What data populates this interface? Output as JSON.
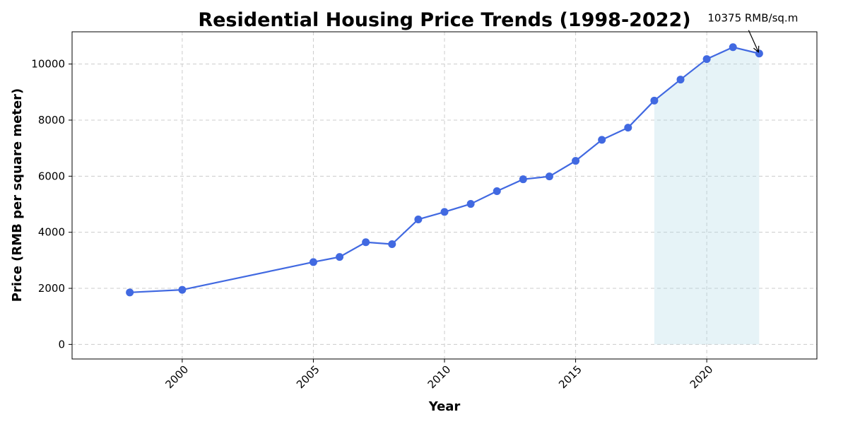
{
  "chart_data": {
    "type": "line",
    "title": "Residential Housing Price Trends (1998-2022)",
    "xlabel": "Year",
    "ylabel": "Price (RMB per square meter)",
    "xlim": [
      1995.8,
      2024.2
    ],
    "ylim": [
      -520,
      11150
    ],
    "x_ticks": [
      2000,
      2005,
      2010,
      2015,
      2020
    ],
    "y_ticks": [
      0,
      2000,
      4000,
      6000,
      8000,
      10000
    ],
    "grid": true,
    "series": [
      {
        "color": "#4169e1",
        "x": [
          1998,
          2000,
          2005,
          2006,
          2007,
          2008,
          2009,
          2010,
          2011,
          2012,
          2013,
          2014,
          2015,
          2016,
          2017,
          2018,
          2019,
          2020,
          2021,
          2022
        ],
        "y": [
          1854,
          1948,
          2937,
          3119,
          3645,
          3576,
          4459,
          4725,
          5011,
          5467,
          5890,
          5991,
          6547,
          7296,
          7732,
          8697,
          9447,
          10178,
          10601,
          10375
        ]
      }
    ],
    "shaded_region": {
      "x_start": 2018,
      "x_end": 2022,
      "color": "#add8e6",
      "opacity": 0.3
    },
    "annotations": [
      {
        "text": "10375 RMB/sq.m",
        "x": 2022,
        "y": 10375
      }
    ]
  }
}
